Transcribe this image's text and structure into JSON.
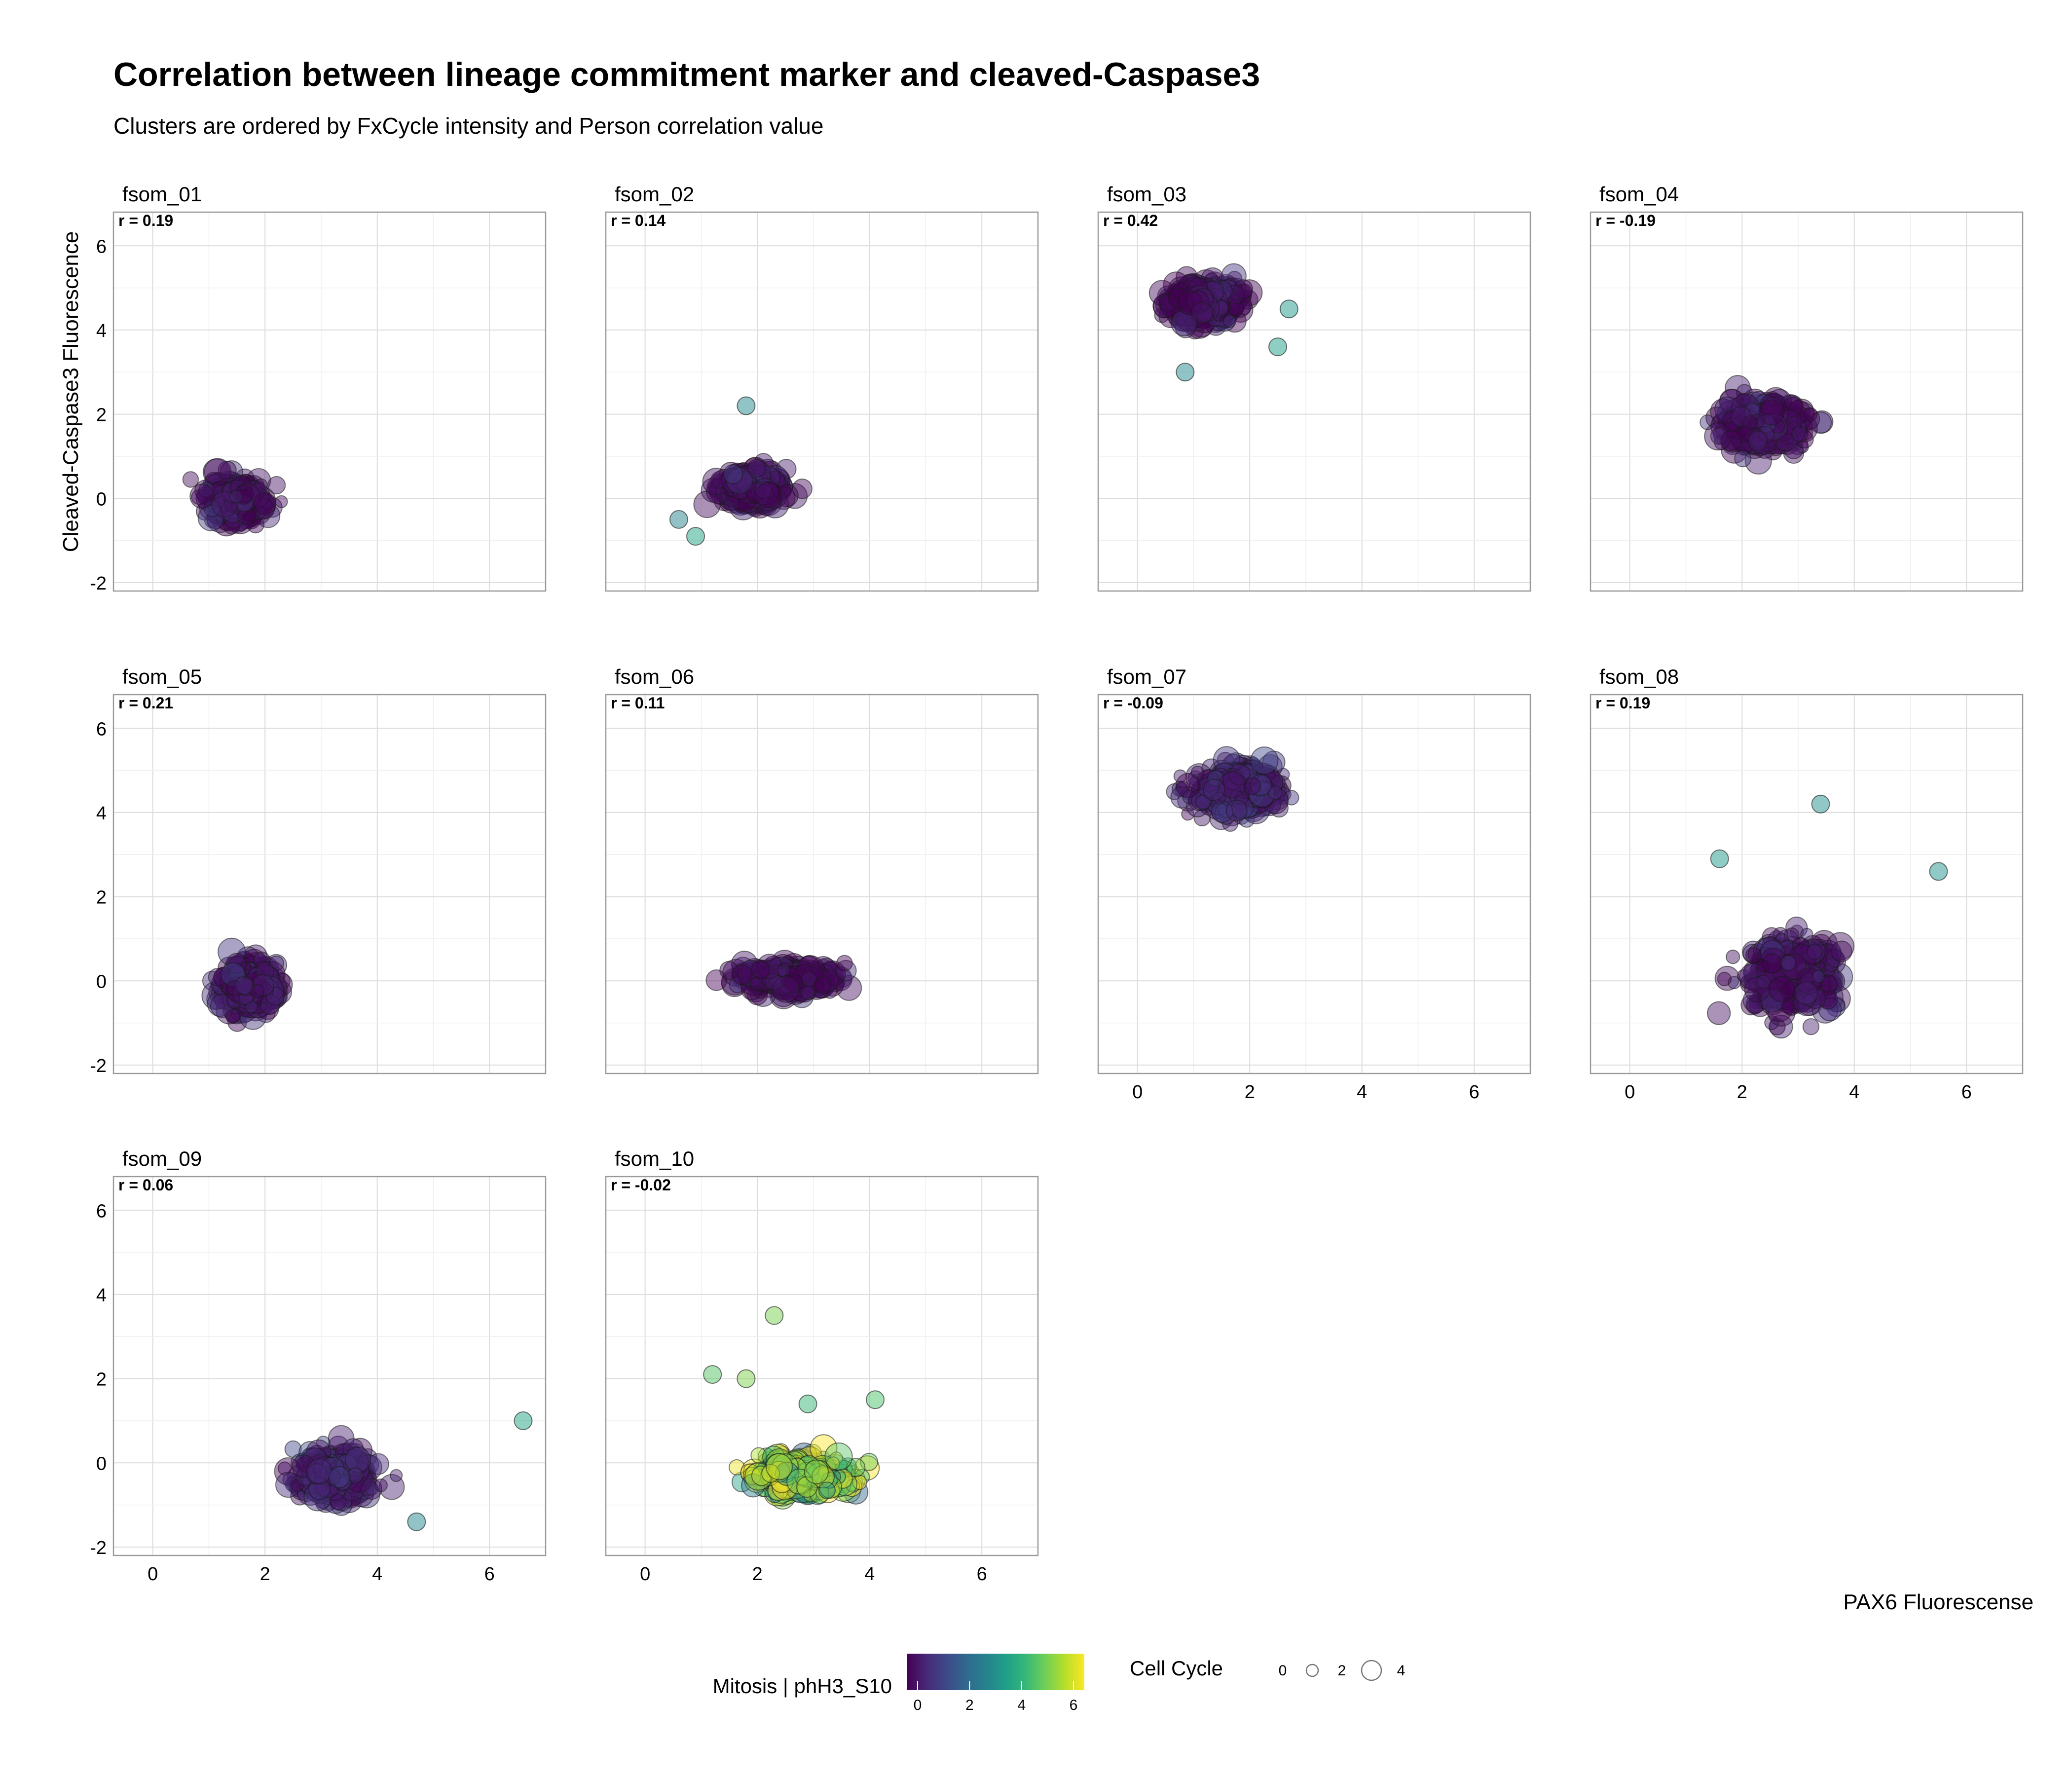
{
  "figure": {
    "title": "Correlation between lineage commitment marker and cleaved-Caspase3",
    "subtitle": "Clusters are ordered by FxCycle intensity and Person correlation value"
  },
  "chart_data": {
    "type": "scatter",
    "title": "Correlation between lineage commitment marker and cleaved-Caspase3",
    "subtitle": "Clusters are ordered by FxCycle intensity and Person correlation value",
    "xlabel": "PAX6 Fluorescense",
    "ylabel": "Cleaved-Caspase3 Fluorescence",
    "xlim": [
      -0.7,
      7.0
    ],
    "ylim": [
      -2.2,
      6.8
    ],
    "xticks": [
      0,
      2,
      4,
      6
    ],
    "yticks": [
      -2,
      0,
      2,
      4,
      6
    ],
    "grid": true,
    "facets": [
      {
        "name": "fsom_01",
        "r_label": "r = 0.19",
        "cx": 1.5,
        "cy": -0.05,
        "sx": 0.55,
        "sy": 0.55,
        "mitosis": 0.3
      },
      {
        "name": "fsom_02",
        "r_label": "r = 0.14",
        "cx": 1.9,
        "cy": 0.25,
        "sx": 0.6,
        "sy": 0.45,
        "mitosis": 0.3
      },
      {
        "name": "fsom_03",
        "r_label": "r = 0.42",
        "cx": 1.2,
        "cy": 4.65,
        "sx": 0.7,
        "sy": 0.55,
        "mitosis": 0.3
      },
      {
        "name": "fsom_04",
        "r_label": "r = -0.19",
        "cx": 2.4,
        "cy": 1.75,
        "sx": 0.8,
        "sy": 0.65,
        "mitosis": 0.3
      },
      {
        "name": "fsom_05",
        "r_label": "r = 0.21",
        "cx": 1.75,
        "cy": -0.15,
        "sx": 0.55,
        "sy": 0.6,
        "mitosis": 0.4
      },
      {
        "name": "fsom_06",
        "r_label": "r = 0.11",
        "cx": 2.55,
        "cy": 0.05,
        "sx": 1.0,
        "sy": 0.35,
        "mitosis": 0.3
      },
      {
        "name": "fsom_07",
        "r_label": "r = -0.09",
        "cx": 1.8,
        "cy": 4.5,
        "sx": 0.9,
        "sy": 0.65,
        "mitosis": 0.6
      },
      {
        "name": "fsom_08",
        "r_label": "r = 0.19",
        "cx": 2.9,
        "cy": 0.1,
        "sx": 0.9,
        "sy": 0.95,
        "mitosis": 0.3
      },
      {
        "name": "fsom_09",
        "r_label": "r = 0.06",
        "cx": 3.3,
        "cy": -0.3,
        "sx": 0.75,
        "sy": 0.65,
        "mitosis": 0.5
      },
      {
        "name": "fsom_10",
        "r_label": "r = -0.02",
        "cx": 2.8,
        "cy": -0.3,
        "sx": 1.0,
        "sy": 0.5,
        "mitosis": 5.0
      }
    ],
    "outliers": {
      "fsom_02": [
        [
          1.8,
          2.2
        ],
        [
          0.9,
          -0.9
        ],
        [
          0.6,
          -0.5
        ]
      ],
      "fsom_03": [
        [
          2.5,
          3.6
        ],
        [
          0.85,
          3.0
        ],
        [
          2.7,
          4.5
        ]
      ],
      "fsom_08": [
        [
          5.5,
          2.6
        ],
        [
          1.6,
          2.9
        ],
        [
          3.4,
          4.2
        ]
      ],
      "fsom_09": [
        [
          6.6,
          1.0
        ],
        [
          4.7,
          -1.4
        ]
      ],
      "fsom_10": [
        [
          2.3,
          3.5
        ],
        [
          1.2,
          2.1
        ],
        [
          1.8,
          2.0
        ],
        [
          2.9,
          1.4
        ],
        [
          4.1,
          1.5
        ]
      ]
    },
    "x_axis_shown_on": [
      "fsom_07",
      "fsom_08",
      "fsom_09",
      "fsom_10"
    ],
    "legend": {
      "color_title": "Mitosis | phH3_S10",
      "color_ticks": [
        0,
        2,
        4,
        6
      ],
      "size_title": "Cell Cycle",
      "size_ticks": [
        0,
        2,
        4
      ],
      "placement": "bottom"
    },
    "colors": {
      "viridis": [
        "#440154",
        "#482878",
        "#3e4989",
        "#31688e",
        "#26828e",
        "#1f9e89",
        "#35b779",
        "#6ece58",
        "#b5de2b",
        "#fde725"
      ],
      "grid": "#dcdcdc",
      "panel_border": "#999999",
      "point_stroke": "#1a1a1a"
    }
  }
}
